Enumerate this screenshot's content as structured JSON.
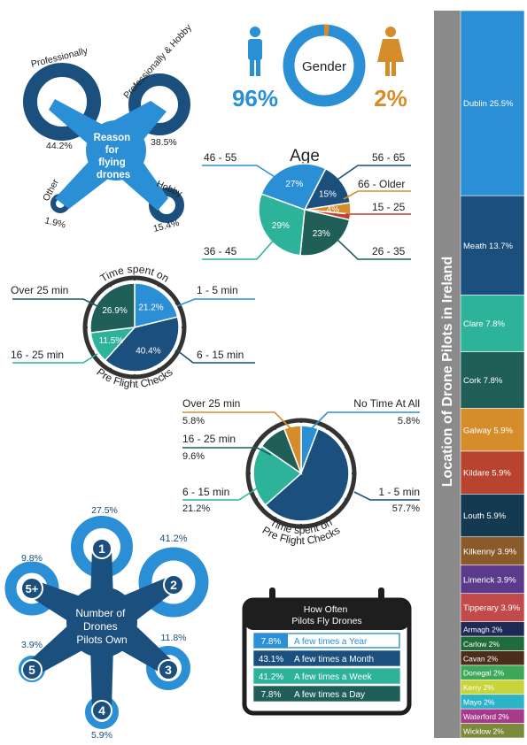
{
  "colors": {
    "blue": "#2b8fd6",
    "navy": "#1a4f7e",
    "teal": "#2cb39a",
    "dark_green": "#1f5f58",
    "orange": "#d58d2c",
    "red": "#c1402d",
    "gray": "#8a8a8a"
  },
  "gender": {
    "title": "Gender",
    "male_pct": "96%",
    "female_pct": "2%",
    "chart_data": {
      "type": "pie",
      "categories": [
        "Male",
        "Female"
      ],
      "values": [
        96,
        2
      ]
    }
  },
  "reason": {
    "title_lines": [
      "Reason",
      "for",
      "flying",
      "drones"
    ],
    "items": [
      {
        "label": "Professionally",
        "value": "44.2%"
      },
      {
        "label": "Professionally & Hobby",
        "value": "38.5%"
      },
      {
        "label": "Other",
        "value": "1.9%"
      },
      {
        "label": "Hobby",
        "value": "15.4%"
      }
    ],
    "chart_data": {
      "type": "bar",
      "categories": [
        "Professionally",
        "Professionally & Hobby",
        "Other",
        "Hobby"
      ],
      "values": [
        44.2,
        38.5,
        1.9,
        15.4
      ]
    }
  },
  "age": {
    "title": "Age",
    "labels": [
      "46 - 55",
      "56 - 65",
      "66 - Older",
      "15 - 25",
      "36 - 45",
      "26 - 35"
    ],
    "slices": [
      {
        "label": "27%",
        "value": 27,
        "color": "#2b8fd6"
      },
      {
        "label": "15%",
        "value": 15,
        "color": "#1a4f7e"
      },
      {
        "label": "4%",
        "value": 4,
        "color": "#d58d2c"
      },
      {
        "label": "",
        "value": 2,
        "color": "#c1402d"
      },
      {
        "label": "23%",
        "value": 23,
        "color": "#1f5f58"
      },
      {
        "label": "29%",
        "value": 29,
        "color": "#2cb39a"
      }
    ],
    "chart_data": {
      "type": "pie",
      "categories": [
        "46 - 55",
        "56 - 65",
        "66 - Older",
        "15 - 25",
        "26 - 35",
        "36 - 45"
      ],
      "values": [
        27,
        15,
        4,
        2,
        23,
        29
      ]
    }
  },
  "preflight": {
    "title_top": "Time spent on",
    "title_bottom": "Pre Flight Checks",
    "labels": [
      "Over 25 min",
      "1 - 5 min",
      "16 - 25 min",
      "6 - 15 min"
    ],
    "slices": [
      {
        "label": "21.2%",
        "value": 21.2,
        "color": "#2b8fd6"
      },
      {
        "label": "40.4%",
        "value": 40.4,
        "color": "#1a4f7e"
      },
      {
        "label": "11.5%",
        "value": 11.5,
        "color": "#2cb39a"
      },
      {
        "label": "26.9%",
        "value": 26.9,
        "color": "#1f5f58"
      }
    ],
    "chart_data": {
      "type": "pie",
      "categories": [
        "1 - 5 min",
        "6 - 15 min",
        "16 - 25 min",
        "Over 25 min"
      ],
      "values": [
        21.2,
        40.4,
        11.5,
        26.9
      ]
    }
  },
  "preflight2": {
    "title_bottom1": "Time spent on",
    "title_bottom2": "Pre Flight Checks",
    "labels": [
      {
        "name": "Over 25 min",
        "value": "5.8%"
      },
      {
        "name": "No Time At All",
        "value": "5.8%"
      },
      {
        "name": "16 - 25 min",
        "value": "9.6%"
      },
      {
        "name": "6 - 15 min",
        "value": "21.2%"
      },
      {
        "name": "1 - 5 min",
        "value": "57.7%"
      }
    ],
    "slices": [
      {
        "value": 5.8,
        "color": "#2b8fd6"
      },
      {
        "value": 57.7,
        "color": "#1a4f7e"
      },
      {
        "value": 21.2,
        "color": "#2cb39a"
      },
      {
        "value": 9.6,
        "color": "#1f5f58"
      },
      {
        "value": 5.8,
        "color": "#d58d2c"
      }
    ],
    "chart_data": {
      "type": "pie",
      "categories": [
        "No Time At All",
        "1 - 5 min",
        "6 - 15 min",
        "16 - 25 min",
        "Over 25 min"
      ],
      "values": [
        5.8,
        57.7,
        21.2,
        9.6,
        5.8
      ]
    }
  },
  "drones": {
    "title_lines": [
      "Number of",
      "Drones",
      "Pilots Own"
    ],
    "items": [
      {
        "label": "1",
        "value": "27.5%"
      },
      {
        "label": "2",
        "value": "41.2%"
      },
      {
        "label": "3",
        "value": "11.8%"
      },
      {
        "label": "4",
        "value": "5.9%"
      },
      {
        "label": "5",
        "value": "3.9%"
      },
      {
        "label": "5+",
        "value": "9.8%"
      }
    ],
    "chart_data": {
      "type": "bar",
      "categories": [
        "1",
        "2",
        "3",
        "4",
        "5",
        "5+"
      ],
      "values": [
        27.5,
        41.2,
        11.8,
        5.9,
        3.9,
        9.8
      ]
    }
  },
  "frequency": {
    "title_lines": [
      "How Often",
      "Pilots Fly Drones"
    ],
    "rows": [
      {
        "value": "7.8%",
        "label": "A few times a Year",
        "color": "#2b8fd6"
      },
      {
        "value": "43.1%",
        "label": "A few times a Month",
        "color": "#1a4f7e"
      },
      {
        "value": "41.2%",
        "label": "A few times a Week",
        "color": "#2cb39a"
      },
      {
        "value": "7.8%",
        "label": "A few times a Day",
        "color": "#1f5f58"
      }
    ],
    "chart_data": {
      "type": "table",
      "categories": [
        "A few times a Year",
        "A few times a Month",
        "A few times a Week",
        "A few times a Day"
      ],
      "values": [
        7.8,
        43.1,
        41.2,
        7.8
      ]
    }
  },
  "location": {
    "title": "Location of Drone Pilots in Ireland",
    "items": [
      {
        "label": "Dublin  25.5%",
        "value": 25.5,
        "color": "#2b8fd6"
      },
      {
        "label": "Meath  13.7%",
        "value": 13.7,
        "color": "#1a4f7e"
      },
      {
        "label": "Clare  7.8%",
        "value": 7.8,
        "color": "#2cb39a"
      },
      {
        "label": "Cork  7.8%",
        "value": 7.8,
        "color": "#1f5f58"
      },
      {
        "label": "Galway  5.9%",
        "value": 5.9,
        "color": "#d58d2c"
      },
      {
        "label": "Kildare  5.9%",
        "value": 5.9,
        "color": "#b8432e"
      },
      {
        "label": "Louth  5.9%",
        "value": 5.9,
        "color": "#143a52"
      },
      {
        "label": "Kilkenny  3.9%",
        "value": 3.9,
        "color": "#8a5a2a"
      },
      {
        "label": "Limerick  3.9%",
        "value": 3.9,
        "color": "#5b3a8c"
      },
      {
        "label": "Tipperary  3.9%",
        "value": 3.9,
        "color": "#c24a4a"
      },
      {
        "label": "Armagh  2%",
        "value": 2,
        "color": "#1e2a55"
      },
      {
        "label": "Carlow  2%",
        "value": 2,
        "color": "#1f6b3a"
      },
      {
        "label": "Cavan  2%",
        "value": 2,
        "color": "#4a2e1a"
      },
      {
        "label": "Donegal  2%",
        "value": 2,
        "color": "#3ea85a"
      },
      {
        "label": "Kerry  2%",
        "value": 2,
        "color": "#c8d43a"
      },
      {
        "label": "Mayo  2%",
        "value": 2,
        "color": "#2cb3c8"
      },
      {
        "label": "Waterford  2%",
        "value": 2,
        "color": "#a83a8c"
      },
      {
        "label": "Wicklow  2%",
        "value": 2,
        "color": "#7a8a3a"
      }
    ],
    "chart_data": {
      "type": "bar",
      "categories": [
        "Dublin",
        "Meath",
        "Clare",
        "Cork",
        "Galway",
        "Kildare",
        "Louth",
        "Kilkenny",
        "Limerick",
        "Tipperary",
        "Armagh",
        "Carlow",
        "Cavan",
        "Donegal",
        "Kerry",
        "Mayo",
        "Waterford",
        "Wicklow"
      ],
      "values": [
        25.5,
        13.7,
        7.8,
        7.8,
        5.9,
        5.9,
        5.9,
        3.9,
        3.9,
        3.9,
        2,
        2,
        2,
        2,
        2,
        2,
        2,
        2
      ],
      "ylabel": "Location of Drone Pilots in Ireland"
    }
  }
}
